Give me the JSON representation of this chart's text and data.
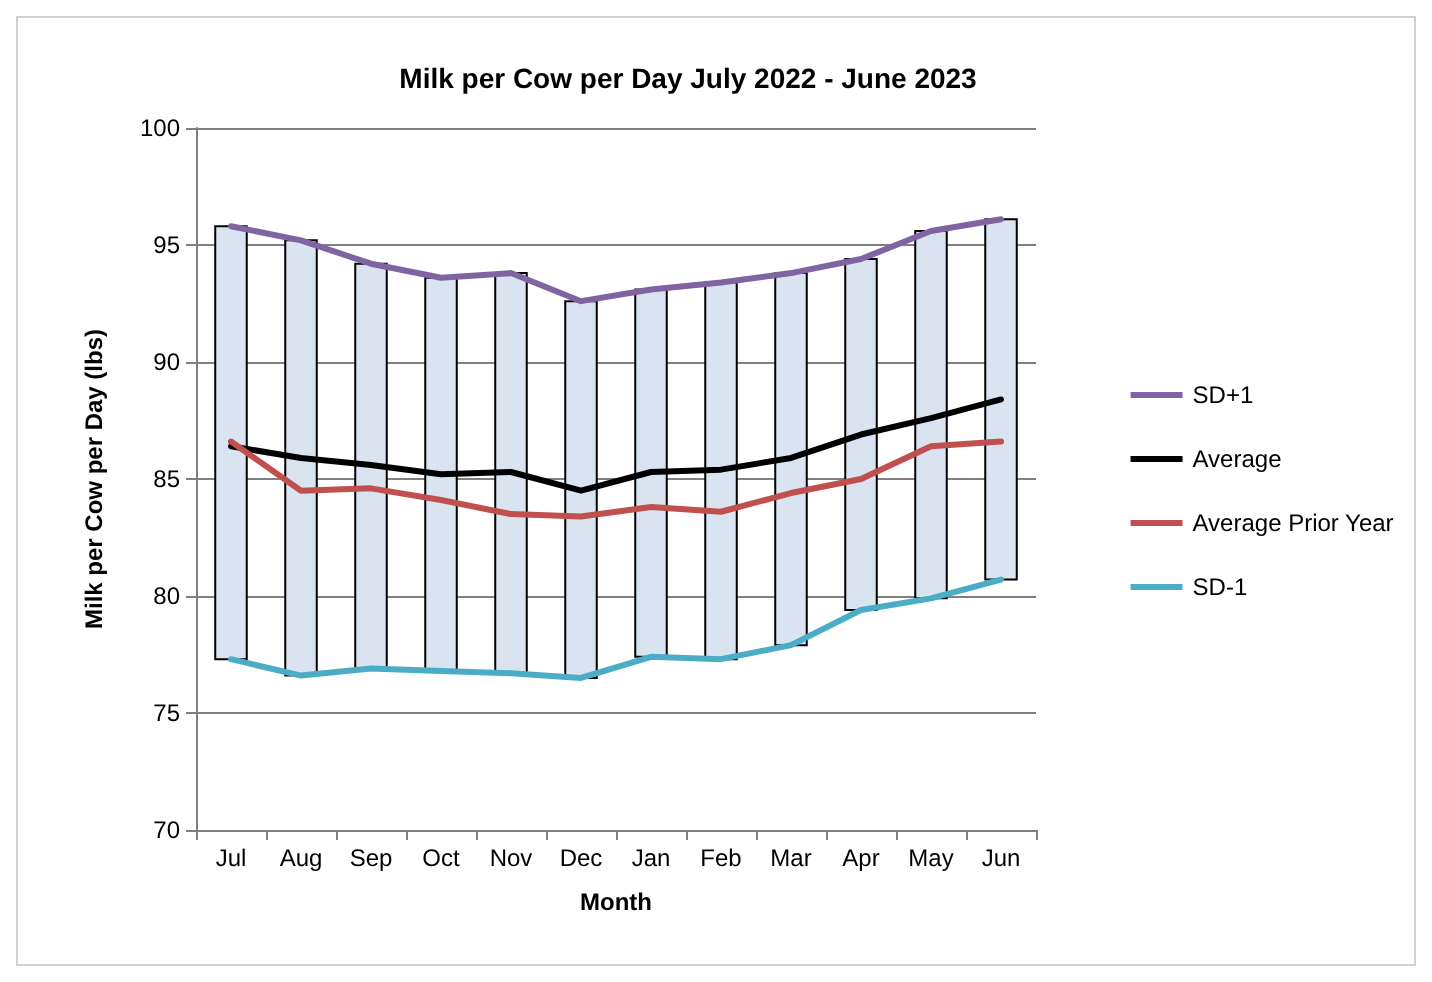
{
  "chart_data": {
    "type": "line",
    "title": "Milk per Cow per Day July 2022 - June 2023",
    "xlabel": "Month",
    "ylabel": "Milk per Cow per Day (lbs)",
    "categories": [
      "Jul",
      "Aug",
      "Sep",
      "Oct",
      "Nov",
      "Dec",
      "Jan",
      "Feb",
      "Mar",
      "Apr",
      "May",
      "Jun"
    ],
    "series": [
      {
        "type": "bar",
        "color": "#dae3f0",
        "base": [
          77.3,
          76.6,
          76.9,
          76.8,
          76.7,
          76.5,
          77.4,
          77.3,
          77.9,
          79.4,
          79.9,
          80.7
        ],
        "values": [
          18.5,
          18.6,
          17.3,
          16.8,
          17.1,
          16.1,
          15.7,
          16.1,
          15.9,
          15.0,
          15.7,
          15.4
        ]
      },
      {
        "name": "SD+1",
        "color": "#8064a2",
        "values": [
          95.8,
          95.2,
          94.2,
          93.6,
          93.8,
          92.6,
          93.1,
          93.4,
          93.8,
          94.4,
          95.6,
          96.1
        ]
      },
      {
        "name": "Average",
        "color": "#000000",
        "values": [
          86.4,
          85.9,
          85.6,
          85.2,
          85.3,
          84.5,
          85.3,
          85.4,
          85.9,
          86.9,
          87.6,
          88.4
        ]
      },
      {
        "name": "Average Prior Year",
        "color": "#c0504d",
        "values": [
          86.6,
          84.5,
          84.6,
          84.1,
          83.5,
          83.4,
          83.8,
          83.6,
          84.4,
          85.0,
          86.4,
          86.6
        ]
      },
      {
        "name": "SD-1",
        "color": "#4bacc6",
        "values": [
          77.3,
          76.6,
          76.9,
          76.8,
          76.7,
          76.5,
          77.4,
          77.3,
          77.9,
          79.4,
          79.9,
          80.7
        ]
      }
    ],
    "ylim": [
      70,
      100
    ],
    "yticks": [
      70,
      75,
      80,
      85,
      90,
      95,
      100
    ],
    "grid": "y",
    "legend": "right",
    "marker": "none",
    "line_style": "solid"
  }
}
